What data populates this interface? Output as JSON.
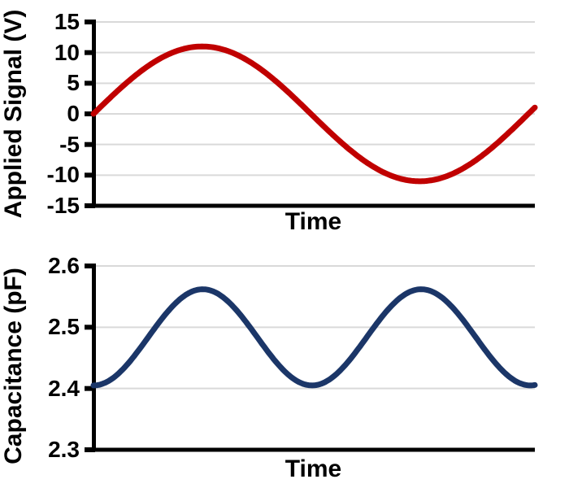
{
  "figure": {
    "background": "#FFFFFF"
  },
  "style": {
    "axis_color": "#000000",
    "gridline_color": "#D9D9D9",
    "text_color": "#000000"
  },
  "chart_data": [
    {
      "id": "applied-signal",
      "type": "line",
      "title": "",
      "xlabel": "Time",
      "ylabel": "Applied Signal (V)",
      "ylim": [
        -15,
        15
      ],
      "ytick_labels": [
        "15",
        "10",
        "5",
        "0",
        "-5",
        "-10",
        "-15"
      ],
      "xtick_labels": [],
      "grid": "horizontal-only",
      "legend": "none",
      "series": [
        {
          "name": "applied-signal",
          "color": "#C00000",
          "shape": "sinusoid",
          "offset": 0,
          "amplitude": 11,
          "cycles": 1.015,
          "phase": 0,
          "power": 1,
          "keypoints": {
            "start_V": 0,
            "peak_V": 11,
            "peak_at_t_frac": 0.25,
            "zero_cross_t_frac": 0.49,
            "trough_V": -11,
            "trough_at_t_frac": 0.74,
            "end_V": 1
          }
        }
      ]
    },
    {
      "id": "capacitance",
      "type": "line",
      "title": "",
      "xlabel": "Time",
      "ylabel": "Capacitance (pF)",
      "ylim": [
        2.3,
        2.6
      ],
      "ytick_labels": [
        "2.6",
        "2.5",
        "2.4",
        "2.3"
      ],
      "xtick_labels": [],
      "grid": "horizontal-only",
      "legend": "none",
      "series": [
        {
          "name": "capacitance",
          "color": "#1B3668",
          "shape": "sinusoid",
          "offset": 2.405,
          "amplitude": 0.157,
          "cycles": 1.01,
          "phase": 0,
          "power": 2,
          "keypoints": {
            "start_pF": 2.405,
            "peak_pF": 2.56,
            "peaks_at_t_frac": [
              0.25,
              0.74
            ],
            "trough_pF": 2.405,
            "trough_at_t_frac": 0.5,
            "end_pF": 2.405
          }
        }
      ]
    }
  ]
}
